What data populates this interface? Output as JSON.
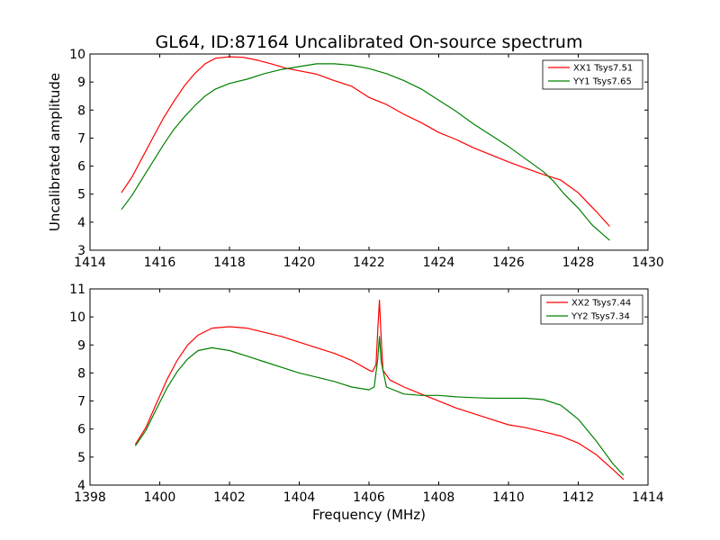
{
  "figure": {
    "title": "GL64, ID:87164 Uncalibrated On-source spectrum",
    "xlabel": "Frequency (MHz)",
    "ylabel": "Uncalibrated amplitude"
  },
  "chart_data": [
    {
      "type": "line",
      "xlim": [
        1414,
        1430
      ],
      "ylim": [
        3,
        10
      ],
      "xticks": [
        1414,
        1416,
        1418,
        1420,
        1422,
        1424,
        1426,
        1428,
        1430
      ],
      "yticks": [
        3,
        4,
        5,
        6,
        7,
        8,
        9,
        10
      ],
      "grid": false,
      "legend_position": "top-right",
      "series": [
        {
          "name": "XX1 Tsys7.51",
          "color": "#ff0000",
          "points": [
            [
              1414.9,
              5.05
            ],
            [
              1415.2,
              5.6
            ],
            [
              1415.5,
              6.3
            ],
            [
              1415.8,
              7.0
            ],
            [
              1416.1,
              7.7
            ],
            [
              1416.4,
              8.3
            ],
            [
              1416.7,
              8.85
            ],
            [
              1417.0,
              9.3
            ],
            [
              1417.3,
              9.65
            ],
            [
              1417.6,
              9.85
            ],
            [
              1418.0,
              9.9
            ],
            [
              1418.4,
              9.88
            ],
            [
              1418.8,
              9.78
            ],
            [
              1419.2,
              9.65
            ],
            [
              1419.6,
              9.5
            ],
            [
              1420.0,
              9.4
            ],
            [
              1420.5,
              9.28
            ],
            [
              1421.0,
              9.05
            ],
            [
              1421.5,
              8.85
            ],
            [
              1422.0,
              8.45
            ],
            [
              1422.5,
              8.2
            ],
            [
              1423.0,
              7.85
            ],
            [
              1423.5,
              7.55
            ],
            [
              1424.0,
              7.2
            ],
            [
              1424.5,
              6.95
            ],
            [
              1425.0,
              6.65
            ],
            [
              1425.5,
              6.4
            ],
            [
              1426.0,
              6.15
            ],
            [
              1426.5,
              5.92
            ],
            [
              1427.0,
              5.7
            ],
            [
              1427.5,
              5.5
            ],
            [
              1428.0,
              5.05
            ],
            [
              1428.5,
              4.4
            ],
            [
              1428.9,
              3.85
            ]
          ]
        },
        {
          "name": "YY1 Tsys7.65",
          "color": "#008000",
          "points": [
            [
              1414.9,
              4.45
            ],
            [
              1415.2,
              4.95
            ],
            [
              1415.5,
              5.55
            ],
            [
              1415.8,
              6.15
            ],
            [
              1416.1,
              6.75
            ],
            [
              1416.4,
              7.3
            ],
            [
              1416.7,
              7.75
            ],
            [
              1417.0,
              8.15
            ],
            [
              1417.3,
              8.5
            ],
            [
              1417.6,
              8.75
            ],
            [
              1418.0,
              8.95
            ],
            [
              1418.5,
              9.1
            ],
            [
              1419.0,
              9.3
            ],
            [
              1419.5,
              9.45
            ],
            [
              1420.0,
              9.55
            ],
            [
              1420.5,
              9.65
            ],
            [
              1421.0,
              9.65
            ],
            [
              1421.5,
              9.6
            ],
            [
              1422.0,
              9.48
            ],
            [
              1422.5,
              9.3
            ],
            [
              1423.0,
              9.05
            ],
            [
              1423.5,
              8.75
            ],
            [
              1424.0,
              8.35
            ],
            [
              1424.5,
              7.95
            ],
            [
              1425.0,
              7.5
            ],
            [
              1425.5,
              7.1
            ],
            [
              1426.0,
              6.7
            ],
            [
              1426.5,
              6.25
            ],
            [
              1427.0,
              5.8
            ],
            [
              1427.3,
              5.45
            ],
            [
              1427.6,
              5.0
            ],
            [
              1428.0,
              4.5
            ],
            [
              1428.4,
              3.9
            ],
            [
              1428.9,
              3.35
            ]
          ]
        }
      ]
    },
    {
      "type": "line",
      "xlim": [
        1398,
        1414
      ],
      "ylim": [
        4,
        11
      ],
      "xticks": [
        1398,
        1400,
        1402,
        1404,
        1406,
        1408,
        1410,
        1412,
        1414
      ],
      "yticks": [
        4,
        5,
        6,
        7,
        8,
        9,
        10,
        11
      ],
      "grid": false,
      "legend_position": "top-right",
      "series": [
        {
          "name": "XX2 Tsys7.44",
          "color": "#ff0000",
          "points": [
            [
              1399.3,
              5.45
            ],
            [
              1399.6,
              6.05
            ],
            [
              1399.9,
              6.9
            ],
            [
              1400.2,
              7.75
            ],
            [
              1400.5,
              8.45
            ],
            [
              1400.8,
              9.0
            ],
            [
              1401.1,
              9.35
            ],
            [
              1401.5,
              9.6
            ],
            [
              1402.0,
              9.65
            ],
            [
              1402.5,
              9.6
            ],
            [
              1403.0,
              9.45
            ],
            [
              1403.5,
              9.3
            ],
            [
              1404.0,
              9.1
            ],
            [
              1404.5,
              8.9
            ],
            [
              1405.0,
              8.7
            ],
            [
              1405.5,
              8.45
            ],
            [
              1406.0,
              8.1
            ],
            [
              1406.1,
              8.05
            ],
            [
              1406.2,
              8.3
            ],
            [
              1406.25,
              9.5
            ],
            [
              1406.3,
              10.6
            ],
            [
              1406.35,
              9.2
            ],
            [
              1406.4,
              8.1
            ],
            [
              1406.6,
              7.75
            ],
            [
              1407.0,
              7.5
            ],
            [
              1407.5,
              7.25
            ],
            [
              1408.0,
              7.0
            ],
            [
              1408.5,
              6.75
            ],
            [
              1409.0,
              6.55
            ],
            [
              1409.5,
              6.35
            ],
            [
              1410.0,
              6.15
            ],
            [
              1410.5,
              6.05
            ],
            [
              1411.0,
              5.9
            ],
            [
              1411.5,
              5.75
            ],
            [
              1412.0,
              5.5
            ],
            [
              1412.5,
              5.1
            ],
            [
              1413.0,
              4.55
            ],
            [
              1413.3,
              4.2
            ]
          ]
        },
        {
          "name": "YY2 Tsys7.34",
          "color": "#008000",
          "points": [
            [
              1399.3,
              5.4
            ],
            [
              1399.6,
              5.95
            ],
            [
              1399.9,
              6.7
            ],
            [
              1400.2,
              7.45
            ],
            [
              1400.5,
              8.05
            ],
            [
              1400.8,
              8.5
            ],
            [
              1401.1,
              8.8
            ],
            [
              1401.5,
              8.9
            ],
            [
              1402.0,
              8.8
            ],
            [
              1402.5,
              8.6
            ],
            [
              1403.0,
              8.4
            ],
            [
              1403.5,
              8.2
            ],
            [
              1404.0,
              8.0
            ],
            [
              1404.5,
              7.85
            ],
            [
              1405.0,
              7.7
            ],
            [
              1405.5,
              7.5
            ],
            [
              1406.0,
              7.4
            ],
            [
              1406.15,
              7.5
            ],
            [
              1406.25,
              8.5
            ],
            [
              1406.3,
              9.3
            ],
            [
              1406.35,
              8.4
            ],
            [
              1406.5,
              7.5
            ],
            [
              1407.0,
              7.25
            ],
            [
              1407.5,
              7.2
            ],
            [
              1408.0,
              7.2
            ],
            [
              1408.5,
              7.15
            ],
            [
              1409.0,
              7.12
            ],
            [
              1409.5,
              7.1
            ],
            [
              1410.0,
              7.1
            ],
            [
              1410.5,
              7.1
            ],
            [
              1411.0,
              7.05
            ],
            [
              1411.5,
              6.85
            ],
            [
              1412.0,
              6.35
            ],
            [
              1412.5,
              5.6
            ],
            [
              1413.0,
              4.75
            ],
            [
              1413.3,
              4.35
            ]
          ]
        }
      ]
    }
  ]
}
